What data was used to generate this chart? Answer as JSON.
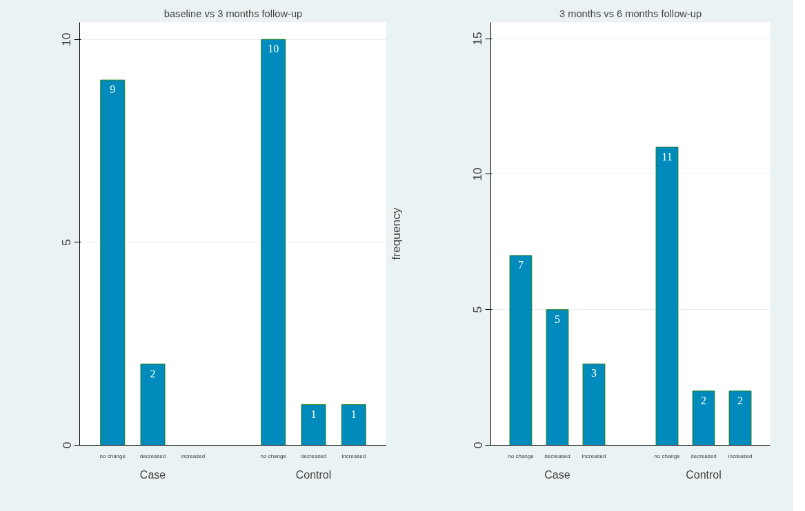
{
  "chart_data": [
    {
      "type": "bar",
      "title": "baseline vs 3 months follow-up",
      "categories": [
        "no change",
        "decreased",
        "increased",
        "no change",
        "decreased",
        "increased"
      ],
      "values": [
        9,
        2,
        0,
        10,
        1,
        1
      ],
      "value_labels": [
        "9",
        "2",
        null,
        "10",
        "1",
        "1"
      ],
      "color": "#008bbc",
      "ylim": [
        0,
        10.42
      ],
      "yticks": [
        0,
        5,
        10
      ],
      "grid": "y",
      "annotations": [
        "Case",
        "Control"
      ]
    },
    {
      "type": "bar",
      "title": "3 months vs 6 months follow-up",
      "ylabel": "frequency",
      "categories": [
        "no change",
        "decreased",
        "increased",
        "no change",
        "decreased",
        "increased"
      ],
      "values": [
        7,
        5,
        3,
        11,
        2,
        2
      ],
      "data_labels": true,
      "color": "#008bbc",
      "ylim": [
        0,
        15.6
      ],
      "yticks": [
        0,
        5,
        10,
        15
      ],
      "grid": "y",
      "annotations": [
        "Case",
        "Control"
      ]
    }
  ]
}
